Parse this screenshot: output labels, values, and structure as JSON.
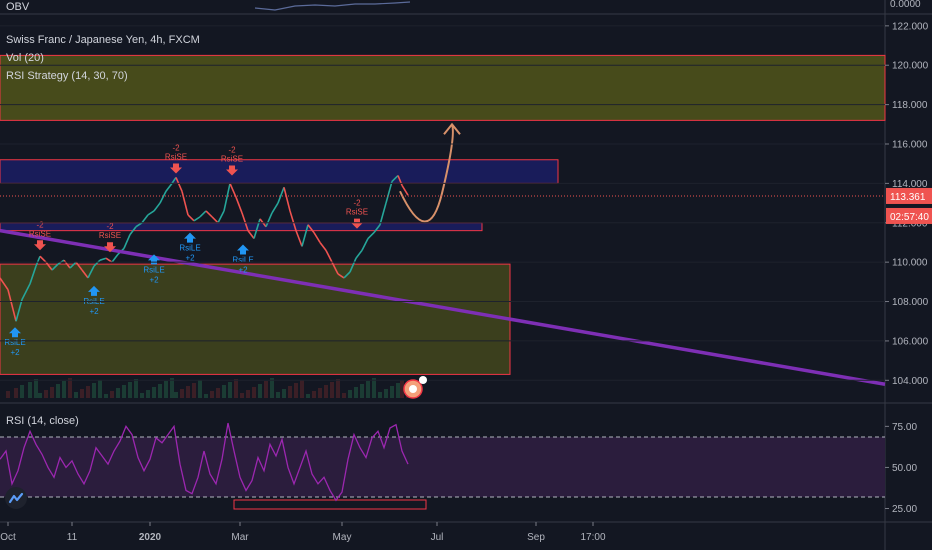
{
  "panels": {
    "obv_label": "OBV",
    "obv_axis_value": "0.0000",
    "main_title": "Swiss Franc / Japanese Yen, 4h, FXCM",
    "vol_label": "Vol (20)",
    "strategy_label": "RSI Strategy (14, 30, 70)",
    "rsi_label": "RSI (14, close)"
  },
  "chart_data": {
    "type": "line",
    "title": "Swiss Franc / Japanese Yen, 4h, FXCM",
    "price_axis": {
      "ticks": [
        "122.000",
        "120.000",
        "118.000",
        "116.000",
        "114.000",
        "112.000",
        "110.000",
        "108.000",
        "106.000",
        "104.000"
      ],
      "ylim": [
        103.0,
        122.5
      ],
      "last_price": "113.361",
      "countdown": "02:57:40"
    },
    "rsi_axis": {
      "ticks": [
        "75.00",
        "50.00",
        "25.00"
      ],
      "ylim": [
        18,
        88
      ],
      "levels": [
        70,
        30
      ]
    },
    "time_axis": {
      "labels": [
        "Oct",
        "11",
        "2020",
        "Mar",
        "May",
        "Jul",
        "Sep",
        "17:00"
      ]
    },
    "price_series": [
      [
        0,
        109.2
      ],
      [
        8,
        108.6
      ],
      [
        16,
        107.0
      ],
      [
        22,
        108.1
      ],
      [
        30,
        108.9
      ],
      [
        36,
        109.8
      ],
      [
        40,
        110.3
      ],
      [
        46,
        110.0
      ],
      [
        52,
        109.6
      ],
      [
        58,
        109.9
      ],
      [
        64,
        110.1
      ],
      [
        70,
        109.7
      ],
      [
        76,
        110.0
      ],
      [
        82,
        109.6
      ],
      [
        88,
        109.2
      ],
      [
        94,
        109.8
      ],
      [
        100,
        110.1
      ],
      [
        106,
        110.2
      ],
      [
        112,
        110.0
      ],
      [
        118,
        110.4
      ],
      [
        124,
        110.7
      ],
      [
        130,
        111.4
      ],
      [
        136,
        111.8
      ],
      [
        142,
        112.0
      ],
      [
        148,
        112.4
      ],
      [
        154,
        112.6
      ],
      [
        160,
        113.0
      ],
      [
        166,
        113.6
      ],
      [
        172,
        114.0
      ],
      [
        176,
        114.3
      ],
      [
        182,
        113.6
      ],
      [
        188,
        112.4
      ],
      [
        194,
        112.1
      ],
      [
        200,
        112.3
      ],
      [
        206,
        112.6
      ],
      [
        212,
        112.3
      ],
      [
        218,
        112.0
      ],
      [
        224,
        112.6
      ],
      [
        230,
        114.0
      ],
      [
        236,
        113.3
      ],
      [
        242,
        112.5
      ],
      [
        248,
        111.6
      ],
      [
        254,
        111.2
      ],
      [
        260,
        112.2
      ],
      [
        266,
        111.8
      ],
      [
        272,
        112.5
      ],
      [
        278,
        113.0
      ],
      [
        284,
        113.8
      ],
      [
        290,
        112.6
      ],
      [
        296,
        111.6
      ],
      [
        302,
        110.8
      ],
      [
        308,
        111.9
      ],
      [
        314,
        111.5
      ],
      [
        320,
        111.0
      ],
      [
        326,
        110.6
      ],
      [
        332,
        110.0
      ],
      [
        338,
        109.4
      ],
      [
        344,
        109.2
      ],
      [
        350,
        109.5
      ],
      [
        356,
        110.2
      ],
      [
        362,
        110.6
      ],
      [
        368,
        111.2
      ],
      [
        374,
        111.5
      ],
      [
        380,
        111.9
      ],
      [
        386,
        113.0
      ],
      [
        392,
        114.1
      ],
      [
        398,
        114.4
      ],
      [
        402,
        113.9
      ],
      [
        408,
        113.4
      ]
    ],
    "rsi_series": [
      [
        0,
        55
      ],
      [
        6,
        60
      ],
      [
        12,
        40
      ],
      [
        18,
        48
      ],
      [
        24,
        62
      ],
      [
        30,
        72
      ],
      [
        36,
        64
      ],
      [
        42,
        58
      ],
      [
        48,
        50
      ],
      [
        54,
        44
      ],
      [
        60,
        56
      ],
      [
        66,
        50
      ],
      [
        72,
        54
      ],
      [
        78,
        46
      ],
      [
        84,
        40
      ],
      [
        90,
        48
      ],
      [
        96,
        62
      ],
      [
        102,
        57
      ],
      [
        108,
        52
      ],
      [
        114,
        60
      ],
      [
        120,
        66
      ],
      [
        126,
        75
      ],
      [
        132,
        70
      ],
      [
        138,
        56
      ],
      [
        144,
        48
      ],
      [
        150,
        55
      ],
      [
        156,
        68
      ],
      [
        162,
        65
      ],
      [
        168,
        70
      ],
      [
        174,
        75
      ],
      [
        180,
        52
      ],
      [
        186,
        36
      ],
      [
        192,
        34
      ],
      [
        198,
        44
      ],
      [
        204,
        60
      ],
      [
        210,
        46
      ],
      [
        216,
        40
      ],
      [
        222,
        55
      ],
      [
        228,
        77
      ],
      [
        234,
        60
      ],
      [
        240,
        44
      ],
      [
        246,
        36
      ],
      [
        252,
        42
      ],
      [
        258,
        56
      ],
      [
        264,
        48
      ],
      [
        270,
        64
      ],
      [
        276,
        57
      ],
      [
        282,
        67
      ],
      [
        288,
        50
      ],
      [
        294,
        40
      ],
      [
        300,
        50
      ],
      [
        306,
        60
      ],
      [
        312,
        46
      ],
      [
        318,
        40
      ],
      [
        324,
        44
      ],
      [
        330,
        36
      ],
      [
        336,
        30
      ],
      [
        342,
        35
      ],
      [
        348,
        55
      ],
      [
        354,
        70
      ],
      [
        360,
        62
      ],
      [
        366,
        56
      ],
      [
        372,
        68
      ],
      [
        378,
        72
      ],
      [
        384,
        62
      ],
      [
        390,
        74
      ],
      [
        396,
        76
      ],
      [
        402,
        60
      ],
      [
        408,
        52
      ]
    ],
    "signals": [
      {
        "label": "RsiSE",
        "qty": "-2",
        "x": 40,
        "price": 110.4,
        "side": "short"
      },
      {
        "label": "RsiSE",
        "qty": "-2",
        "x": 110,
        "price": 110.3,
        "side": "short"
      },
      {
        "label": "RsiSE",
        "qty": "-2",
        "x": 176,
        "price": 114.3,
        "side": "short"
      },
      {
        "label": "RsiSE",
        "qty": "-2",
        "x": 232,
        "price": 114.2,
        "side": "short"
      },
      {
        "label": "RsiSE",
        "qty": "-2",
        "x": 357,
        "price": 111.5,
        "side": "short"
      },
      {
        "label": "RsiLE",
        "qty": "+2",
        "x": 15,
        "price": 106.9,
        "side": "long"
      },
      {
        "label": "RsiLE",
        "qty": "+2",
        "x": 94,
        "price": 109.0,
        "side": "long"
      },
      {
        "label": "RsiLE",
        "qty": "+2",
        "x": 154,
        "price": 110.6,
        "side": "long"
      },
      {
        "label": "RsiLE",
        "qty": "+2",
        "x": 190,
        "price": 111.7,
        "side": "long"
      },
      {
        "label": "RsiLE",
        "qty": "+2",
        "x": 243,
        "price": 111.1,
        "side": "long"
      }
    ],
    "zones": [
      {
        "from": 117.2,
        "to": 120.5,
        "x0": 0,
        "x1": 885,
        "fill": "#5a5d1a",
        "stroke": "#f23645"
      },
      {
        "from": 114.0,
        "to": 115.2,
        "x0": 0,
        "x1": 558,
        "fill": "#1c1f6e",
        "stroke": "#f23645"
      },
      {
        "from": 111.6,
        "to": 112.0,
        "x0": 0,
        "x1": 482,
        "fill": "#1c1f6e",
        "stroke": "#f23645"
      },
      {
        "from": 104.3,
        "to": 109.9,
        "x0": 0,
        "x1": 510,
        "fill": "#4a4d1c",
        "stroke": "#f23645"
      }
    ],
    "trendline": {
      "x0": 0,
      "p0": 111.6,
      "x1": 885,
      "p1": 103.8,
      "color": "#7e2fb5"
    },
    "projection": [
      [
        400,
        113.6
      ],
      [
        428,
        112.0
      ],
      [
        442,
        113.5
      ],
      [
        448,
        116.0
      ],
      [
        452,
        117.0
      ]
    ],
    "colors": {
      "up": "#26a69a",
      "down": "#ef5350",
      "rsi": "#9c27b0",
      "rsi_band": "#2b1d3d",
      "zone_border": "#f23645",
      "projection": "#d8916a",
      "last_price_bg": "#ef5350"
    }
  }
}
